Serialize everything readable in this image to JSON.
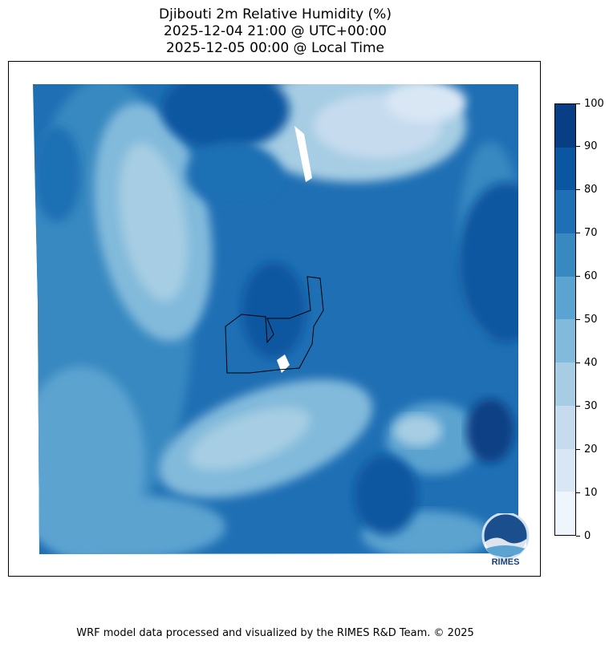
{
  "title": {
    "line1": "Djibouti 2m Relative Humidity (%)",
    "line2": "2025-12-04 21:00 @ UTC+00:00",
    "line3": "2025-12-05 00:00 @ Local Time"
  },
  "chart_data": {
    "type": "filled-contour-map",
    "variable": "2m Relative Humidity (%)",
    "region": "Djibouti",
    "colorbar": {
      "levels": [
        0,
        10,
        20,
        30,
        40,
        50,
        60,
        70,
        80,
        90,
        100
      ],
      "tick_labels": [
        "0",
        "10",
        "20",
        "30",
        "40",
        "50",
        "60",
        "70",
        "80",
        "90",
        "100"
      ],
      "colors": [
        "#eef5fc",
        "#d9e7f5",
        "#c7dbef",
        "#a6cde3",
        "#82badb",
        "#5ba3d0",
        "#3989c1",
        "#1f6fb4",
        "#0b56a0",
        "#083f84"
      ]
    }
  },
  "logo": {
    "text": "RIMES"
  },
  "footer": "WRF model data processed and visualized by the RIMES R&D Team. © 2025"
}
